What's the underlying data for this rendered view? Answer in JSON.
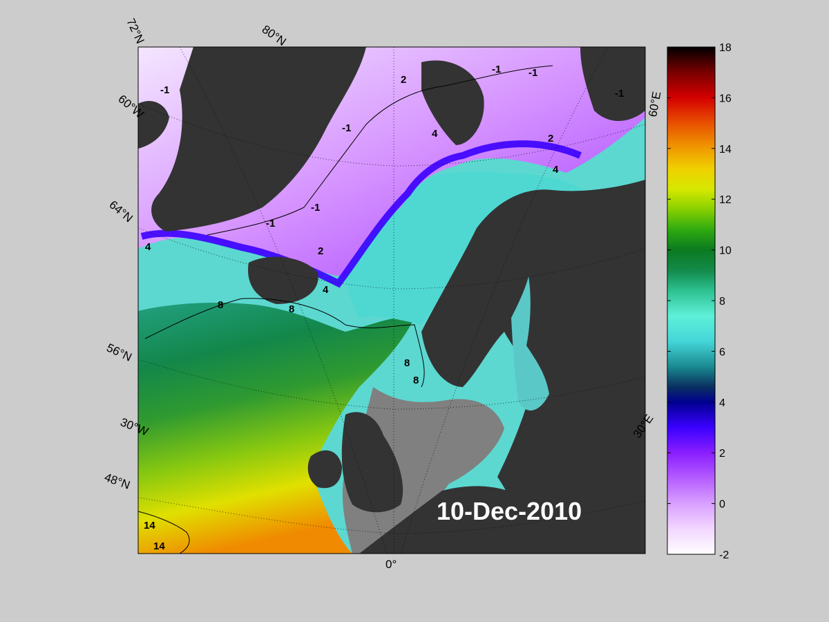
{
  "date_label": "10-Dec-2010",
  "latitude_labels": [
    "72°N",
    "64°N",
    "56°N",
    "48°N"
  ],
  "longitude_labels": [
    "80°N",
    "60°W",
    "30°W",
    "0°",
    "30°E",
    "60°E"
  ],
  "contour_labels": [
    "-1",
    "-1",
    "-1",
    "-1",
    "-1",
    "-1",
    "2",
    "2",
    "2",
    "2",
    "4",
    "4",
    "4",
    "4",
    "4",
    "8",
    "8",
    "8",
    "8",
    "8",
    "14",
    "14"
  ],
  "colorbar": {
    "ticks": [
      "18",
      "16",
      "14",
      "12",
      "10",
      "8",
      "6",
      "4",
      "2",
      "0",
      "-2"
    ],
    "min": -2,
    "max": 18
  },
  "colors": {
    "background": "#cccccc",
    "land": "#333333",
    "sea_ice_mask": "#808080"
  }
}
